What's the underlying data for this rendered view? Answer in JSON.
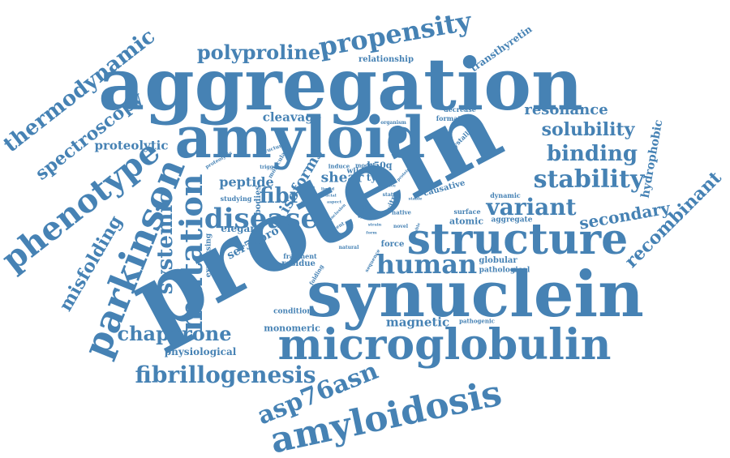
{
  "theme": {
    "word_color": "#4682b4",
    "background": "#ffffff"
  },
  "words": [
    "protein",
    "aggregation",
    "synuclein",
    "amyloid",
    "structure",
    "microglobulin",
    "parkinson",
    "amyloidosis",
    "phenotype",
    "disease",
    "mutation",
    "propensity",
    "human",
    "stability",
    "fibrillogenesis",
    "asp76asn",
    "thermodynamic",
    "chaperone",
    "polyproline",
    "fibril",
    "variant",
    "binding",
    "solubility",
    "spectroscopy",
    "systemic",
    "misfolding",
    "secondary",
    "recombinant",
    "resonance",
    "magnetic",
    "isoforms",
    "peptide",
    "shear",
    "proteolytic",
    "cleavage",
    "hydrophobic",
    "ser52pro",
    "transthyretin",
    "relationship",
    "elegans",
    "physiological",
    "monomeric",
    "globular",
    "pathological",
    "atomic",
    "aggregate",
    "residue",
    "fragment",
    "force",
    "causative",
    "bodies",
    "expressing",
    "condition",
    "studying",
    "type",
    "wild",
    "h50q",
    "model",
    "induce",
    "crystallin",
    "decrease",
    "formation",
    "organism",
    "molecular",
    "trigger",
    "proteolysis",
    "structural",
    "pathogenic",
    "dynamic",
    "surface",
    "native",
    "vitro",
    "site",
    "novel",
    "state",
    "folding",
    "natural",
    "sequence",
    "patient",
    "form",
    "strain",
    "inclusion",
    "protein",
    "liquid",
    "crucial",
    "aspect",
    "involve",
    "soluble",
    "stable"
  ]
}
